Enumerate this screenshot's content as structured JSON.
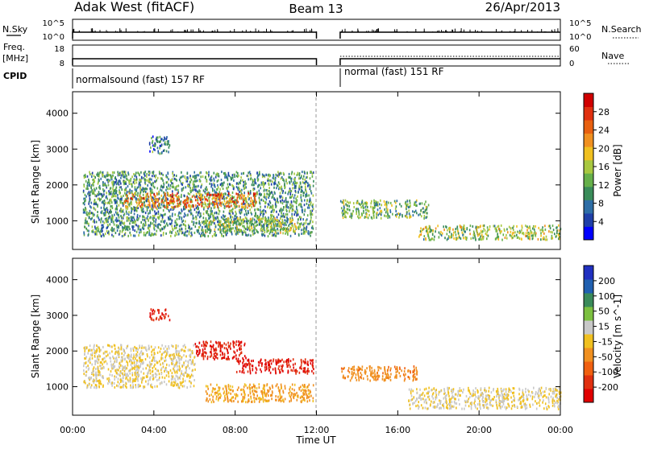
{
  "header": {
    "site": "Adak West (fitACF)",
    "beam": "Beam 13",
    "date": "26/Apr/2013"
  },
  "strip_labels": {
    "nsky": "N.Sky",
    "freq_line1": "Freq.",
    "freq_line2": "[MHz]",
    "cpid": "CPID",
    "nsearch": "N.Search",
    "nave": "Nave",
    "nsky_ticks": [
      "10^5",
      "10^0"
    ],
    "freq_ticks": [
      "18",
      "8"
    ],
    "nsearch_ticks": [
      "10^5",
      "10^0"
    ],
    "nave_ticks": [
      "60",
      "0"
    ]
  },
  "cpid_modes": [
    {
      "label": "normalsound (fast) 157 RF"
    },
    {
      "label": "normal (fast) 151 RF"
    }
  ],
  "axes": {
    "ylabel": "Slant Range [km]",
    "xlabel": "Time UT",
    "x_ticks": [
      "00:00",
      "04:00",
      "08:00",
      "12:00",
      "16:00",
      "20:00",
      "00:00"
    ],
    "y_ticks": [
      "1000",
      "2000",
      "3000",
      "4000"
    ]
  },
  "power_colorbar": {
    "title": "Power [dB]",
    "ticks": [
      "28",
      "24",
      "20",
      "16",
      "12",
      "8",
      "4"
    ],
    "colors": [
      "#0000ff",
      "#1f3fa8",
      "#2e6ea6",
      "#3a8c5a",
      "#66b04a",
      "#a8c840",
      "#f0c020",
      "#f09020",
      "#e86010",
      "#e03010",
      "#d00000"
    ]
  },
  "velocity_colorbar": {
    "title": "Velocity [m s^-1]",
    "ticks": [
      "200",
      "100",
      "50",
      "15",
      "-15",
      "-50",
      "-100",
      "-200"
    ],
    "colors": [
      "#2030c0",
      "#2060b0",
      "#3a8a5a",
      "#7cc040",
      "#c8c8c8",
      "#f0c020",
      "#f09020",
      "#f06010",
      "#e03010",
      "#e00000"
    ]
  },
  "chart_data": [
    {
      "type": "heatmap",
      "title": "Power [dB]",
      "xlabel": "Time UT",
      "ylabel": "Slant Range [km]",
      "xlim": [
        "00:00",
        "24:00"
      ],
      "ylim": [
        200,
        4600
      ],
      "zlim": [
        0,
        30
      ],
      "data_gap": [
        "12:00",
        "13:10"
      ],
      "echo_regions": [
        {
          "start": "00:30",
          "end": "11:50",
          "range_km": [
            600,
            2400
          ],
          "typical_db": 10
        },
        {
          "start": "02:30",
          "end": "09:00",
          "range_km": [
            1400,
            1800
          ],
          "typical_db": 22
        },
        {
          "start": "06:30",
          "end": "11:00",
          "range_km": [
            700,
            1100
          ],
          "typical_db": 14
        },
        {
          "start": "03:45",
          "end": "04:45",
          "range_km": [
            2900,
            3400
          ],
          "typical_db": 8
        },
        {
          "start": "13:10",
          "end": "17:30",
          "range_km": [
            1100,
            1600
          ],
          "typical_db": 12
        },
        {
          "start": "17:00",
          "end": "24:00",
          "range_km": [
            500,
            900
          ],
          "typical_db": 14
        }
      ]
    },
    {
      "type": "heatmap",
      "title": "Velocity [m s^-1]",
      "xlabel": "Time UT",
      "ylabel": "Slant Range [km]",
      "xlim": [
        "00:00",
        "24:00"
      ],
      "ylim": [
        200,
        4600
      ],
      "zlim": [
        -250,
        250
      ],
      "data_gap": [
        "12:00",
        "13:10"
      ],
      "echo_regions": [
        {
          "start": "00:30",
          "end": "06:00",
          "range_km": [
            1000,
            2200
          ],
          "typical_velocity": 0
        },
        {
          "start": "06:00",
          "end": "08:30",
          "range_km": [
            1800,
            2300
          ],
          "typical_velocity": -200
        },
        {
          "start": "08:00",
          "end": "11:50",
          "range_km": [
            1400,
            1800
          ],
          "typical_velocity": -200
        },
        {
          "start": "06:30",
          "end": "11:50",
          "range_km": [
            600,
            1100
          ],
          "typical_velocity": -60
        },
        {
          "start": "03:45",
          "end": "04:45",
          "range_km": [
            2900,
            3200
          ],
          "typical_velocity": -200
        },
        {
          "start": "13:10",
          "end": "17:00",
          "range_km": [
            1200,
            1600
          ],
          "typical_velocity": -80
        },
        {
          "start": "16:30",
          "end": "24:00",
          "range_km": [
            400,
            1000
          ],
          "typical_velocity": 0
        }
      ]
    }
  ]
}
